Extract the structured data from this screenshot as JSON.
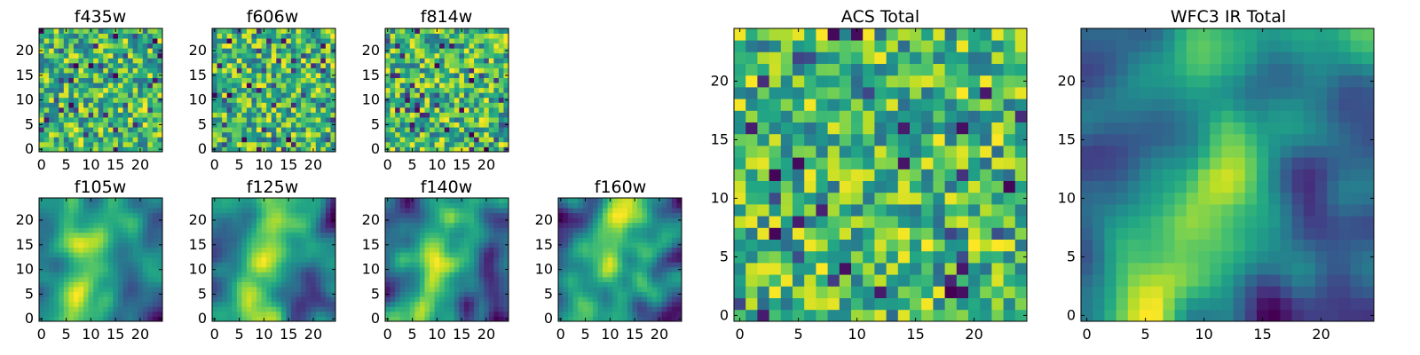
{
  "figure": {
    "description_type": "heatmap grid of band images"
  },
  "chart_data": [
    {
      "id": "f435w",
      "type": "heatmap",
      "title": "f435w",
      "xlim": [
        -0.5,
        24.5
      ],
      "ylim": [
        -0.5,
        24.5
      ],
      "xticks": [
        0,
        5,
        10,
        15,
        20
      ],
      "yticks": [
        0,
        5,
        10,
        15,
        20
      ],
      "grid": false,
      "colormap": "viridis",
      "texture": "noisy",
      "seed": 11
    },
    {
      "id": "f606w",
      "type": "heatmap",
      "title": "f606w",
      "xlim": [
        -0.5,
        24.5
      ],
      "ylim": [
        -0.5,
        24.5
      ],
      "xticks": [
        0,
        5,
        10,
        15,
        20
      ],
      "yticks": [
        0,
        5,
        10,
        15,
        20
      ],
      "grid": false,
      "colormap": "viridis",
      "texture": "noisy",
      "seed": 23
    },
    {
      "id": "f814w",
      "type": "heatmap",
      "title": "f814w",
      "xlim": [
        -0.5,
        24.5
      ],
      "ylim": [
        -0.5,
        24.5
      ],
      "xticks": [
        0,
        5,
        10,
        15,
        20
      ],
      "yticks": [
        0,
        5,
        10,
        15,
        20
      ],
      "grid": false,
      "colormap": "viridis",
      "texture": "noisy",
      "seed": 37
    },
    {
      "id": "f105w",
      "type": "heatmap",
      "title": "f105w",
      "xlim": [
        -0.5,
        24.5
      ],
      "ylim": [
        -0.5,
        24.5
      ],
      "xticks": [
        0,
        5,
        10,
        15,
        20
      ],
      "yticks": [
        0,
        5,
        10,
        15,
        20
      ],
      "grid": false,
      "colormap": "viridis",
      "texture": "smooth",
      "seed": 41
    },
    {
      "id": "f125w",
      "type": "heatmap",
      "title": "f125w",
      "xlim": [
        -0.5,
        24.5
      ],
      "ylim": [
        -0.5,
        24.5
      ],
      "xticks": [
        0,
        5,
        10,
        15,
        20
      ],
      "yticks": [
        0,
        5,
        10,
        15,
        20
      ],
      "grid": false,
      "colormap": "viridis",
      "texture": "smooth",
      "seed": 53
    },
    {
      "id": "f140w",
      "type": "heatmap",
      "title": "f140w",
      "xlim": [
        -0.5,
        24.5
      ],
      "ylim": [
        -0.5,
        24.5
      ],
      "xticks": [
        0,
        5,
        10,
        15,
        20
      ],
      "yticks": [
        0,
        5,
        10,
        15,
        20
      ],
      "grid": false,
      "colormap": "viridis",
      "texture": "smooth",
      "seed": 67
    },
    {
      "id": "f160w",
      "type": "heatmap",
      "title": "f160w",
      "xlim": [
        -0.5,
        24.5
      ],
      "ylim": [
        -0.5,
        24.5
      ],
      "xticks": [
        0,
        5,
        10,
        15,
        20
      ],
      "yticks": [
        0,
        5,
        10,
        15,
        20
      ],
      "grid": false,
      "colormap": "viridis",
      "texture": "smooth",
      "seed": 79
    },
    {
      "id": "acs-total",
      "type": "heatmap",
      "title": "ACS Total",
      "xlim": [
        -0.5,
        24.5
      ],
      "ylim": [
        -0.5,
        24.5
      ],
      "xticks": [
        0,
        5,
        10,
        15,
        20
      ],
      "yticks": [
        0,
        5,
        10,
        15,
        20
      ],
      "grid": false,
      "colormap": "viridis",
      "texture": "noisy",
      "seed": 97
    },
    {
      "id": "wfc3-ir-total",
      "type": "heatmap",
      "title": "WFC3 IR Total",
      "xlim": [
        -0.5,
        24.5
      ],
      "ylim": [
        -0.5,
        24.5
      ],
      "xticks": [
        0,
        5,
        10,
        15,
        20
      ],
      "yticks": [
        0,
        5,
        10,
        15,
        20
      ],
      "grid": false,
      "colormap": "viridis",
      "texture": "smooth",
      "seed": 101
    }
  ]
}
